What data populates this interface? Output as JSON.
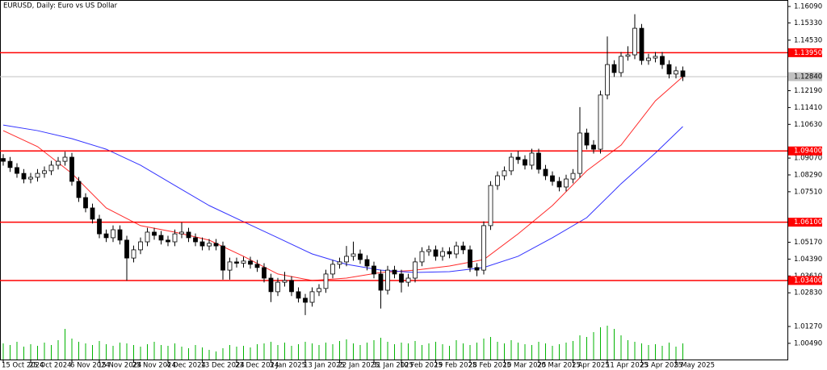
{
  "chart_data": {
    "type": "candlestick",
    "title": "EURUSD, Daily:  Euro vs US Dollar",
    "categories": [
      "15 Oct 2024",
      null,
      null,
      null,
      "25 Oct 2024",
      null,
      null,
      null,
      null,
      null,
      "6 Nov 2024",
      null,
      null,
      null,
      "15 Nov 2024",
      null,
      null,
      null,
      null,
      "25 Nov 2024",
      null,
      null,
      null,
      null,
      "4 Dec 2024",
      null,
      null,
      null,
      null,
      "13 Dec 2024",
      null,
      null,
      null,
      null,
      "23 Dec 2024",
      null,
      null,
      null,
      null,
      "3 Jan 2025",
      null,
      null,
      null,
      null,
      "13 Jan 2025",
      null,
      null,
      null,
      null,
      "22 Jan 2025",
      null,
      null,
      null,
      null,
      "31 Jan 2025",
      null,
      null,
      null,
      "10 Feb 2025",
      null,
      null,
      null,
      null,
      "19 Feb 2025",
      null,
      null,
      null,
      null,
      "28 Feb 2025",
      null,
      null,
      null,
      null,
      "10 Mar 2025",
      null,
      null,
      null,
      null,
      "20 Mar 2025",
      null,
      null,
      null,
      null,
      "1 Apr 2025",
      null,
      null,
      null,
      null,
      "11 Apr 2025",
      null,
      null,
      null,
      null,
      "23 Apr 2025",
      null,
      null,
      null,
      null,
      "5 May 2025",
      null
    ],
    "open": [
      1.0905,
      1.0892,
      1.0863,
      1.0836,
      1.081,
      1.0818,
      1.0836,
      1.0848,
      1.0874,
      1.0892,
      1.0911,
      1.0799,
      1.0724,
      1.0676,
      1.0624,
      1.0556,
      1.0538,
      1.0575,
      1.0527,
      1.0444,
      1.0482,
      1.0519,
      1.0564,
      1.0549,
      1.0527,
      1.0519,
      1.0556,
      1.0564,
      1.0538,
      1.0519,
      1.05,
      1.0512,
      1.05,
      1.0388,
      1.0426,
      1.042,
      1.043,
      1.0415,
      1.04,
      1.0351,
      1.0288,
      1.0332,
      1.034,
      1.0288,
      1.0258,
      1.0239,
      1.0288,
      1.0303,
      1.037,
      1.0415,
      1.0426,
      1.0452,
      1.0463,
      1.0437,
      1.0407,
      1.037,
      1.0295,
      1.0388,
      1.037,
      1.0332,
      1.0351,
      1.0426,
      1.0474,
      1.0482,
      1.0452,
      1.0474,
      1.0463,
      1.05,
      1.0482,
      1.04,
      1.0388,
      1.0594,
      1.078,
      1.0825,
      1.0848,
      1.0911,
      1.09,
      1.0874,
      1.093,
      1.0855,
      1.0825,
      1.0799,
      1.0773,
      1.081,
      1.0836,
      1.1023,
      1.0967,
      1.0948,
      1.1199,
      1.134,
      1.1303,
      1.1378,
      1.1385,
      1.1508,
      1.1359,
      1.137,
      1.1378,
      1.134,
      1.1296,
      1.1311
    ],
    "high": [
      1.0925,
      1.0912,
      1.0883,
      1.0856,
      1.0838,
      1.0856,
      1.0868,
      1.0894,
      1.0912,
      1.0936,
      1.0931,
      1.0819,
      1.0744,
      1.0696,
      1.0644,
      1.0576,
      1.0595,
      1.0595,
      1.0547,
      1.0502,
      1.0539,
      1.0584,
      1.0584,
      1.0569,
      1.0547,
      1.0576,
      1.0609,
      1.0584,
      1.0558,
      1.0539,
      1.0532,
      1.0532,
      1.052,
      1.0446,
      1.0446,
      1.045,
      1.045,
      1.0435,
      1.042,
      1.0371,
      1.0352,
      1.038,
      1.036,
      1.0308,
      1.0278,
      1.0308,
      1.0323,
      1.039,
      1.0435,
      1.0446,
      1.05,
      1.052,
      1.0483,
      1.0457,
      1.0427,
      1.039,
      1.0408,
      1.0408,
      1.039,
      1.0371,
      1.0446,
      1.0494,
      1.0502,
      1.0502,
      1.0494,
      1.0494,
      1.052,
      1.052,
      1.0502,
      1.042,
      1.0614,
      1.08,
      1.0845,
      1.0868,
      1.0931,
      1.094,
      1.092,
      1.095,
      1.095,
      1.0875,
      1.0845,
      1.0819,
      1.083,
      1.0856,
      1.1143,
      1.1043,
      1.099,
      1.1219,
      1.147,
      1.136,
      1.1398,
      1.1425,
      1.1573,
      1.1528,
      1.139,
      1.1398,
      1.1398,
      1.136,
      1.1331,
      1.1331
    ],
    "low": [
      1.0872,
      1.0843,
      1.0816,
      1.079,
      1.079,
      1.0798,
      1.0816,
      1.0828,
      1.0854,
      1.0872,
      1.0779,
      1.0704,
      1.0656,
      1.0604,
      1.0536,
      1.0518,
      1.0518,
      1.0507,
      1.034,
      1.0424,
      1.0462,
      1.0499,
      1.0529,
      1.0507,
      1.0499,
      1.0499,
      1.0536,
      1.0518,
      1.0499,
      1.048,
      1.048,
      1.048,
      1.0344,
      1.0344,
      1.04,
      1.04,
      1.0395,
      1.038,
      1.0331,
      1.024,
      1.0268,
      1.0312,
      1.0268,
      1.0238,
      1.018,
      1.0219,
      1.0268,
      1.0283,
      1.035,
      1.0395,
      1.0406,
      1.0432,
      1.0417,
      1.0387,
      1.035,
      1.021,
      1.0275,
      1.035,
      1.0285,
      1.0312,
      1.0331,
      1.0406,
      1.0454,
      1.0432,
      1.0432,
      1.0443,
      1.0443,
      1.0462,
      1.038,
      1.036,
      1.0368,
      1.0574,
      1.076,
      1.0805,
      1.0828,
      1.088,
      1.0854,
      1.0854,
      1.0835,
      1.0805,
      1.0779,
      1.0753,
      1.0753,
      1.079,
      1.0816,
      1.0947,
      1.0928,
      1.0928,
      1.1179,
      1.1283,
      1.1283,
      1.1358,
      1.1365,
      1.1339,
      1.1339,
      1.135,
      1.132,
      1.1276,
      1.1276,
      1.1264
    ],
    "close": [
      1.0892,
      1.0863,
      1.0836,
      1.081,
      1.0818,
      1.0836,
      1.0848,
      1.0874,
      1.0892,
      1.0911,
      1.0799,
      1.0724,
      1.0676,
      1.0624,
      1.0556,
      1.0538,
      1.0575,
      1.0527,
      1.0444,
      1.0482,
      1.0519,
      1.0564,
      1.0549,
      1.0527,
      1.0519,
      1.0556,
      1.0564,
      1.0538,
      1.0519,
      1.05,
      1.0512,
      1.05,
      1.0388,
      1.0426,
      1.042,
      1.043,
      1.0415,
      1.04,
      1.0351,
      1.0288,
      1.0332,
      1.034,
      1.0288,
      1.0258,
      1.0239,
      1.0288,
      1.0303,
      1.037,
      1.0415,
      1.0426,
      1.0452,
      1.0463,
      1.0437,
      1.0407,
      1.037,
      1.0295,
      1.0388,
      1.037,
      1.0332,
      1.0351,
      1.0426,
      1.0474,
      1.0482,
      1.0452,
      1.0474,
      1.0463,
      1.05,
      1.0482,
      1.04,
      1.0388,
      1.0594,
      1.078,
      1.0825,
      1.0848,
      1.0911,
      1.09,
      1.0874,
      1.093,
      1.0855,
      1.0825,
      1.0799,
      1.0773,
      1.081,
      1.0836,
      1.1023,
      1.0967,
      1.0948,
      1.1199,
      1.134,
      1.1303,
      1.1378,
      1.1385,
      1.1508,
      1.1359,
      1.137,
      1.1378,
      1.134,
      1.1296,
      1.1311,
      1.1284
    ],
    "volumes": [
      20,
      18,
      22,
      16,
      19,
      17,
      21,
      18,
      24,
      38,
      26,
      22,
      20,
      18,
      23,
      19,
      17,
      21,
      20,
      18,
      16,
      19,
      22,
      18,
      17,
      20,
      16,
      14,
      18,
      15,
      12,
      10,
      14,
      18,
      16,
      17,
      15,
      19,
      20,
      22,
      18,
      21,
      17,
      19,
      22,
      20,
      18,
      21,
      19,
      23,
      25,
      20,
      18,
      21,
      24,
      27,
      22,
      19,
      21,
      20,
      23,
      18,
      20,
      22,
      19,
      17,
      24,
      20,
      18,
      21,
      26,
      28,
      22,
      20,
      24,
      21,
      19,
      18,
      22,
      20,
      17,
      19,
      21,
      23,
      30,
      28,
      34,
      40,
      42,
      38,
      30,
      24,
      22,
      20,
      18,
      19,
      17,
      21,
      16,
      20
    ],
    "volume_color": "#00b400",
    "moving_averages": [
      {
        "color": "#ff2a2a",
        "x": [
          0,
          5,
          10,
          15,
          20,
          25,
          30,
          35,
          40,
          45,
          50,
          55,
          60,
          65,
          70,
          75,
          80,
          85,
          90,
          95,
          99
        ],
        "values": [
          1.1034,
          1.096,
          1.0836,
          1.0676,
          1.0594,
          1.0564,
          1.0527,
          1.0452,
          1.037,
          1.034,
          1.0351,
          1.0377,
          1.0388,
          1.0407,
          1.0437,
          1.0556,
          1.0687,
          1.0848,
          1.0967,
          1.1172,
          1.1284
        ]
      },
      {
        "color": "#3232ff",
        "x": [
          0,
          5,
          10,
          15,
          20,
          25,
          30,
          35,
          40,
          45,
          50,
          55,
          60,
          65,
          70,
          75,
          80,
          85,
          90,
          95,
          99
        ],
        "values": [
          1.106,
          1.1034,
          1.0997,
          1.0948,
          1.0874,
          1.078,
          1.0687,
          1.0612,
          1.0538,
          1.0463,
          1.0415,
          1.0388,
          1.0377,
          1.0381,
          1.04,
          1.0452,
          1.0538,
          1.0631,
          1.0788,
          1.093,
          1.1053
        ]
      }
    ],
    "levels": [
      {
        "value": 1.1395,
        "label": "1.13950"
      },
      {
        "value": 1.094,
        "label": "1.09400"
      },
      {
        "value": 1.061,
        "label": "1.06100"
      },
      {
        "value": 1.034,
        "label": "1.03400"
      }
    ],
    "level_color": "#ff0000",
    "last_price": {
      "value": 1.1284,
      "label": "1.12840"
    },
    "ylim": [
      0.9974,
      1.1639
    ],
    "yticks": [
      {
        "value": 1.1609,
        "label": "1.16090"
      },
      {
        "value": 1.1533,
        "label": "1.15330"
      },
      {
        "value": 1.1453,
        "label": "1.14530"
      },
      {
        "value": 1.1219,
        "label": "1.12190"
      },
      {
        "value": 1.1141,
        "label": "1.11410"
      },
      {
        "value": 1.1063,
        "label": "1.10630"
      },
      {
        "value": 1.0907,
        "label": "1.09070"
      },
      {
        "value": 1.0829,
        "label": "1.08290"
      },
      {
        "value": 1.0751,
        "label": "1.07510"
      },
      {
        "value": 1.0517,
        "label": "1.05170"
      },
      {
        "value": 1.0439,
        "label": "1.04390"
      },
      {
        "value": 1.0361,
        "label": "1.03610"
      },
      {
        "value": 1.0283,
        "label": "1.02830"
      },
      {
        "value": 1.0127,
        "label": "1.01270"
      },
      {
        "value": 1.0049,
        "label": "1.00490"
      }
    ],
    "grid": false
  }
}
